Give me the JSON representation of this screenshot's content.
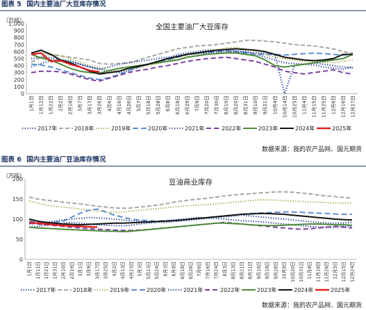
{
  "figures": [
    {
      "header_label": "图表 5",
      "header_title": "国内主要油厂大豆库存情况",
      "source": "数据来源：我的农产品网、国元期货"
    },
    {
      "header_label": "图表 6",
      "header_title": "国内主要油厂豆油库存情况",
      "source": "数据来源：我的农产品网、国元期货"
    }
  ],
  "chart_data": [
    {
      "type": "line",
      "title": "全国主要油厂大豆库存",
      "ylabel": "（万吨）",
      "ylim": [
        0,
        1000
      ],
      "yticks": [
        0,
        100,
        200,
        300,
        400,
        500,
        600,
        700,
        800,
        900,
        1000
      ],
      "ytick_labels": [
        "0",
        "100",
        "200",
        "300",
        "400",
        "500",
        "600",
        "700",
        "800",
        "900",
        "1,000"
      ],
      "xtick_labels": [
        "1月1日",
        "1月12日",
        "1月22日",
        "2月2日",
        "2月18日",
        "3月7日",
        "3月17日",
        "3月26日",
        "4月6日",
        "4月16日",
        "4月26日",
        "5月7日",
        "5月18日",
        "5月28日",
        "6月8日",
        "6月18日",
        "6月29日",
        "7月9日",
        "7月20日",
        "7月30日",
        "8月10日",
        "8月20日",
        "8月31日",
        "9月10日",
        "9月21日",
        "10月4日",
        "10月14日",
        "10月25日",
        "11月4日",
        "11月15日",
        "11月25日",
        "12月6日",
        "12月16日",
        "12月27日"
      ],
      "legend_position": "bottom",
      "series": [
        {
          "name": "2017年",
          "color": "#1f3a93",
          "dash": "1.2,2.4",
          "width": 2.2,
          "values": [
            380,
            430,
            470,
            480,
            470,
            420,
            380,
            350,
            320,
            300,
            320,
            380,
            420,
            450,
            500,
            560,
            580,
            600,
            620,
            620,
            630,
            610,
            600,
            560,
            520,
            480,
            440,
            430,
            420,
            410,
            380,
            360,
            350,
            380
          ]
        },
        {
          "name": "2018年",
          "color": "#a6a6a6",
          "dash": "6,3",
          "width": 2,
          "values": [
            450,
            520,
            560,
            540,
            520,
            500,
            480,
            430,
            420,
            430,
            440,
            480,
            520,
            560,
            600,
            640,
            660,
            680,
            690,
            700,
            720,
            740,
            760,
            760,
            750,
            740,
            720,
            700,
            690,
            680,
            660,
            640,
            600,
            580
          ]
        },
        {
          "name": "2019年",
          "color": "#9aa33a",
          "dash": "1.2,2.4",
          "width": 2,
          "values": [
            560,
            580,
            560,
            540,
            500,
            450,
            400,
            370,
            330,
            320,
            340,
            370,
            400,
            430,
            470,
            510,
            550,
            570,
            600,
            620,
            650,
            660,
            640,
            600,
            560,
            520,
            500,
            480,
            460,
            460,
            450,
            440,
            460,
            480
          ]
        },
        {
          "name": "2020年",
          "color": "#5b8fd0",
          "dash": "8,4",
          "width": 2,
          "values": [
            420,
            410,
            380,
            340,
            300,
            260,
            220,
            200,
            230,
            270,
            330,
            380,
            420,
            450,
            480,
            520,
            560,
            580,
            590,
            600,
            610,
            600,
            580,
            560,
            560,
            560,
            550,
            560,
            570,
            580,
            570,
            560,
            550,
            560
          ]
        },
        {
          "name": "2021年",
          "color": "#1f3a93",
          "dash": "1.2,2.4",
          "width": 2.2,
          "values": [
            500,
            520,
            510,
            480,
            450,
            420,
            380,
            350,
            380,
            420,
            440,
            460,
            480,
            500,
            520,
            540,
            560,
            570,
            580,
            590,
            600,
            600,
            590,
            580,
            580,
            560,
            0,
            400,
            420,
            440,
            420,
            400,
            380,
            370
          ]
        },
        {
          "name": "2022年",
          "color": "#7b3fa0",
          "dash": "7,4",
          "width": 2,
          "values": [
            300,
            320,
            320,
            310,
            280,
            240,
            200,
            180,
            220,
            260,
            300,
            330,
            350,
            380,
            400,
            430,
            460,
            480,
            500,
            510,
            520,
            500,
            480,
            460,
            420,
            380,
            320,
            300,
            280,
            300,
            320,
            340,
            300,
            280
          ]
        },
        {
          "name": "2023年",
          "color": "#4e8a3a",
          "dash": "",
          "width": 2,
          "values": [
            560,
            510,
            480,
            420,
            360,
            320,
            300,
            290,
            330,
            360,
            380,
            400,
            420,
            440,
            460,
            480,
            520,
            540,
            560,
            570,
            580,
            580,
            560,
            540,
            480,
            400,
            380,
            400,
            420,
            440,
            460,
            480,
            500,
            560
          ]
        },
        {
          "name": "2024年",
          "color": "#111111",
          "dash": "",
          "width": 2,
          "values": [
            580,
            620,
            560,
            480,
            440,
            380,
            320,
            280,
            300,
            320,
            360,
            390,
            420,
            460,
            500,
            530,
            560,
            580,
            600,
            620,
            630,
            640,
            630,
            620,
            600,
            560,
            520,
            500,
            480,
            470,
            480,
            500,
            560,
            560
          ]
        },
        {
          "name": "2025年",
          "color": "#e02020",
          "dash": "",
          "width": 2.4,
          "values": [
            560,
            580,
            460,
            470,
            420,
            380,
            330,
            310,
            null,
            null,
            null,
            null,
            null,
            null,
            null,
            null,
            null,
            null,
            null,
            null,
            null,
            null,
            null,
            null,
            null,
            null,
            null,
            null,
            null,
            null,
            null,
            null,
            null,
            null
          ]
        }
      ]
    },
    {
      "type": "line",
      "title": "豆油商业库存",
      "ylabel": "（万吨）",
      "ylim": [
        0,
        200
      ],
      "yticks": [
        0,
        50,
        100,
        150,
        200
      ],
      "ytick_labels": [
        "0",
        "50",
        "100",
        "150",
        "200"
      ],
      "xtick_labels": [
        "1月1日",
        "1月11日",
        "1月21日",
        "1月31日",
        "2月10日",
        "2月19日",
        "3月1日",
        "3月9日",
        "3月17日",
        "3月25日",
        "4月2日",
        "4月13日",
        "4月23日",
        "5月3日",
        "5月13日",
        "5月24日",
        "6月3日",
        "6月8日",
        "6月18日",
        "6月26日",
        "7月6日",
        "7月16日",
        "7月24日",
        "8月3日",
        "8月13日",
        "8月21日",
        "8月31日",
        "9月10日",
        "9月18日",
        "9月28日",
        "10月8日",
        "10月20日",
        "10月31日",
        "11月8日",
        "11月18日",
        "11月26日",
        "12月5日",
        "12月15日",
        "12月24日"
      ],
      "legend_position": "bottom",
      "series": [
        {
          "name": "2017年",
          "color": "#1f3a93",
          "dash": "1.2,2.4",
          "width": 2.2,
          "values": [
            80,
            82,
            85,
            88,
            90,
            92,
            90,
            88,
            86,
            85,
            84,
            83,
            85,
            88,
            90,
            92,
            95,
            98,
            100,
            102,
            104,
            103,
            102,
            100,
            98,
            96,
            95,
            94,
            92,
            90,
            88,
            86,
            84,
            82,
            80,
            80,
            80,
            82,
            82
          ]
        },
        {
          "name": "2018年",
          "color": "#a6a6a6",
          "dash": "6,3",
          "width": 2,
          "values": [
            155,
            150,
            147,
            145,
            142,
            140,
            138,
            135,
            132,
            130,
            128,
            127,
            128,
            130,
            132,
            135,
            138,
            142,
            145,
            148,
            150,
            152,
            155,
            158,
            160,
            162,
            163,
            165,
            166,
            168,
            168,
            167,
            165,
            163,
            160,
            158,
            156,
            154,
            152
          ]
        },
        {
          "name": "2019年",
          "color": "#9aa33a",
          "dash": "1.2,2.4",
          "width": 2,
          "values": [
            145,
            140,
            135,
            132,
            130,
            128,
            125,
            122,
            120,
            118,
            117,
            118,
            120,
            122,
            124,
            126,
            128,
            130,
            132,
            134,
            135,
            136,
            138,
            140,
            142,
            144,
            146,
            148,
            148,
            147,
            146,
            145,
            144,
            143,
            142,
            141,
            140,
            140,
            140
          ]
        },
        {
          "name": "2020年",
          "color": "#5b8fd0",
          "dash": "8,4",
          "width": 2,
          "values": [
            95,
            92,
            90,
            92,
            95,
            105,
            115,
            122,
            125,
            118,
            110,
            105,
            100,
            98,
            96,
            95,
            96,
            97,
            98,
            100,
            102,
            104,
            106,
            108,
            110,
            112,
            114,
            115,
            116,
            117,
            118,
            118,
            117,
            116,
            115,
            114,
            113,
            112,
            112
          ]
        },
        {
          "name": "2021年",
          "color": "#1f3a93",
          "dash": "1.2,2.4",
          "width": 2.2,
          "values": [
            88,
            90,
            92,
            95,
            98,
            100,
            102,
            104,
            103,
            102,
            100,
            98,
            96,
            95,
            94,
            93,
            92,
            94,
            96,
            98,
            100,
            102,
            104,
            106,
            108,
            110,
            108,
            106,
            104,
            102,
            100,
            98,
            96,
            94,
            92,
            90,
            90,
            90,
            92
          ]
        },
        {
          "name": "2022年",
          "color": "#7b3fa0",
          "dash": "7,4",
          "width": 2,
          "values": [
            90,
            88,
            86,
            84,
            82,
            80,
            78,
            76,
            75,
            74,
            73,
            72,
            72,
            73,
            74,
            76,
            78,
            80,
            82,
            84,
            86,
            88,
            90,
            92,
            90,
            88,
            86,
            84,
            82,
            80,
            78,
            76,
            75,
            76,
            78,
            80,
            82,
            80,
            78
          ]
        },
        {
          "name": "2023年",
          "color": "#4e8a3a",
          "dash": "",
          "width": 2,
          "values": [
            80,
            78,
            77,
            76,
            75,
            74,
            73,
            72,
            71,
            70,
            70,
            69,
            70,
            72,
            74,
            76,
            78,
            80,
            82,
            84,
            86,
            88,
            90,
            90,
            89,
            88,
            86,
            85,
            84,
            84,
            85,
            86,
            87,
            88,
            88,
            87,
            86,
            86,
            85
          ]
        },
        {
          "name": "2024年",
          "color": "#111111",
          "dash": "",
          "width": 2,
          "values": [
            100,
            95,
            92,
            90,
            88,
            87,
            86,
            87,
            88,
            89,
            90,
            90,
            91,
            92,
            93,
            94,
            95,
            96,
            98,
            100,
            102,
            104,
            106,
            108,
            110,
            112,
            113,
            114,
            114,
            113,
            112,
            110,
            108,
            106,
            104,
            102,
            100,
            99,
            98
          ]
        },
        {
          "name": "2025年",
          "color": "#e02020",
          "dash": "",
          "width": 2.4,
          "values": [
            92,
            90,
            88,
            86,
            84,
            83,
            82,
            81,
            80,
            null,
            null,
            null,
            null,
            null,
            null,
            null,
            null,
            null,
            null,
            null,
            null,
            null,
            null,
            null,
            null,
            null,
            null,
            null,
            null,
            null,
            null,
            null,
            null,
            null,
            null,
            null,
            null,
            null,
            null
          ]
        }
      ]
    }
  ]
}
